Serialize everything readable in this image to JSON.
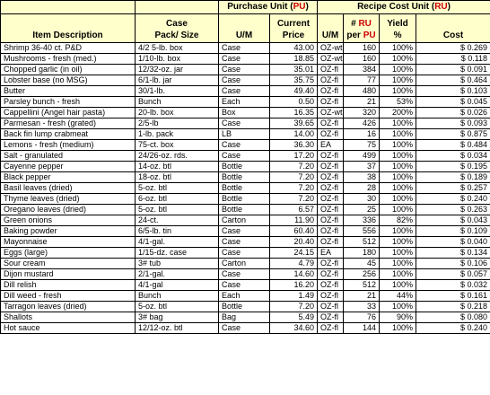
{
  "header": {
    "purchase_unit_prefix": "Purchase Unit (",
    "purchase_unit_abbr": "PU",
    "purchase_unit_suffix": ")",
    "recipe_cost_unit_prefix": "Recipe Cost Unit (",
    "recipe_cost_unit_abbr": "RU",
    "recipe_cost_unit_suffix": ")",
    "item_description": "Item Description",
    "case_pack_line1": "Case",
    "case_pack_line2": "Pack/ Size",
    "um_purchase": "U/M",
    "current_price_line1": "Current",
    "current_price_line2": "Price",
    "um_recipe": "U/M",
    "num_ru_hash": "#",
    "num_ru_ru": "RU",
    "num_ru_per": "per",
    "num_ru_pu": "PU",
    "yield_line1": "Yield",
    "yield_line2": "%",
    "cost": "Cost"
  },
  "rows": [
    {
      "item": "Shrimp 36-40 ct. P&D",
      "pack": "4/2 5-lb. box",
      "um": "Case",
      "price": "43.00",
      "rum": "OZ-wt",
      "ru": "160",
      "yield": "100%",
      "cost": "$ 0.269"
    },
    {
      "item": "Mushrooms - fresh (med.)",
      "pack": "1/10-lb. box",
      "um": "Case",
      "price": "18.85",
      "rum": "OZ-wt",
      "ru": "160",
      "yield": "100%",
      "cost": "$ 0.118"
    },
    {
      "item": "Chopped garlic (in oil)",
      "pack": "12/32-oz. jar",
      "um": "Case",
      "price": "35.01",
      "rum": "OZ-fl",
      "ru": "384",
      "yield": "100%",
      "cost": "$ 0.091"
    },
    {
      "item": "Lobster base (no MSG)",
      "pack": "6/1-lb. jar",
      "um": "Case",
      "price": "35.75",
      "rum": "OZ-fl",
      "ru": "77",
      "yield": "100%",
      "cost": "$ 0.464"
    },
    {
      "item": "Butter",
      "pack": "30/1-lb.",
      "um": "Case",
      "price": "49.40",
      "rum": "OZ-fl",
      "ru": "480",
      "yield": "100%",
      "cost": "$ 0.103"
    },
    {
      "item": "Parsley bunch - fresh",
      "pack": "Bunch",
      "um": "Each",
      "price": "0.50",
      "rum": "OZ-fl",
      "ru": "21",
      "yield": "53%",
      "cost": "$ 0.045"
    },
    {
      "item": "Cappellini (Angel hair pasta)",
      "pack": "20-lb. box",
      "um": "Box",
      "price": "16.35",
      "rum": "OZ-wt",
      "ru": "320",
      "yield": "200%",
      "cost": "$ 0.026"
    },
    {
      "item": "Parmesan - fresh (grated)",
      "pack": "2/5-lb",
      "um": "Case",
      "price": "39.65",
      "rum": "OZ-fl",
      "ru": "426",
      "yield": "100%",
      "cost": "$ 0.093"
    },
    {
      "item": "Back fin lump crabmeat",
      "pack": "1-lb. pack",
      "um": "LB",
      "price": "14.00",
      "rum": "OZ-fl",
      "ru": "16",
      "yield": "100%",
      "cost": "$ 0.875"
    },
    {
      "item": "Lemons - fresh (medium)",
      "pack": "75-ct. box",
      "um": "Case",
      "price": "36.30",
      "rum": "EA",
      "ru": "75",
      "yield": "100%",
      "cost": "$ 0.484"
    },
    {
      "item": "Salt - granulated",
      "pack": "24/26-oz. rds.",
      "um": "Case",
      "price": "17.20",
      "rum": "OZ-fl",
      "ru": "499",
      "yield": "100%",
      "cost": "$ 0.034"
    },
    {
      "item": "Cayenne pepper",
      "pack": "14-oz. btl",
      "um": "Bottle",
      "price": "7.20",
      "rum": "OZ-fl",
      "ru": "37",
      "yield": "100%",
      "cost": "$ 0.195"
    },
    {
      "item": "Black pepper",
      "pack": "18-oz. btl",
      "um": "Bottle",
      "price": "7.20",
      "rum": "OZ-fl",
      "ru": "38",
      "yield": "100%",
      "cost": "$ 0.189"
    },
    {
      "item": "Basil leaves (dried)",
      "pack": "5-oz. btl",
      "um": "Bottle",
      "price": "7.20",
      "rum": "OZ-fl",
      "ru": "28",
      "yield": "100%",
      "cost": "$ 0.257"
    },
    {
      "item": "Thyme leaves (dried)",
      "pack": "6-oz. btl",
      "um": "Bottle",
      "price": "7.20",
      "rum": "OZ-fl",
      "ru": "30",
      "yield": "100%",
      "cost": "$ 0.240"
    },
    {
      "item": "Oregano leaves (dried)",
      "pack": "5-oz. btl",
      "um": "Bottle",
      "price": "6.57",
      "rum": "OZ-fl",
      "ru": "25",
      "yield": "100%",
      "cost": "$ 0.263"
    },
    {
      "item": "Green onions",
      "pack": "24-ct.",
      "um": "Carton",
      "price": "11.90",
      "rum": "OZ-fl",
      "ru": "336",
      "yield": "82%",
      "cost": "$ 0.043"
    },
    {
      "item": "Baking powder",
      "pack": "6/5-lb. tin",
      "um": "Case",
      "price": "60.40",
      "rum": "OZ-fl",
      "ru": "556",
      "yield": "100%",
      "cost": "$ 0.109"
    },
    {
      "item": "Mayonnaise",
      "pack": "4/1-gal.",
      "um": "Case",
      "price": "20.40",
      "rum": "OZ-fl",
      "ru": "512",
      "yield": "100%",
      "cost": "$ 0.040"
    },
    {
      "item": "Eggs (large)",
      "pack": "1/15-dz. case",
      "um": "Case",
      "price": "24.15",
      "rum": "EA",
      "ru": "180",
      "yield": "100%",
      "cost": "$ 0.134"
    },
    {
      "item": "Sour cream",
      "pack": "3# tub",
      "um": "Carton",
      "price": "4.79",
      "rum": "OZ-fl",
      "ru": "45",
      "yield": "100%",
      "cost": "$ 0.106"
    },
    {
      "item": "Dijon mustard",
      "pack": "2/1-gal.",
      "um": "Case",
      "price": "14.60",
      "rum": "OZ-fl",
      "ru": "256",
      "yield": "100%",
      "cost": "$ 0.057"
    },
    {
      "item": "Dill relish",
      "pack": "4/1-gal",
      "um": "Case",
      "price": "16.20",
      "rum": "OZ-fl",
      "ru": "512",
      "yield": "100%",
      "cost": "$ 0.032"
    },
    {
      "item": "Dill weed - fresh",
      "pack": "Bunch",
      "um": "Each",
      "price": "1.49",
      "rum": "OZ-fl",
      "ru": "21",
      "yield": "44%",
      "cost": "$ 0.161"
    },
    {
      "item": "Tarragon leaves (dried)",
      "pack": "5-oz. btl",
      "um": "Bottle",
      "price": "7.20",
      "rum": "OZ-fl",
      "ru": "33",
      "yield": "100%",
      "cost": "$ 0.218"
    },
    {
      "item": "Shallots",
      "pack": "3# bag",
      "um": "Bag",
      "price": "5.49",
      "rum": "OZ-fl",
      "ru": "76",
      "yield": "90%",
      "cost": "$ 0.080"
    },
    {
      "item": "Hot sauce",
      "pack": "12/12-oz. btl",
      "um": "Case",
      "price": "34.60",
      "rum": "OZ-fl",
      "ru": "144",
      "yield": "100%",
      "cost": "$ 0.240"
    }
  ]
}
